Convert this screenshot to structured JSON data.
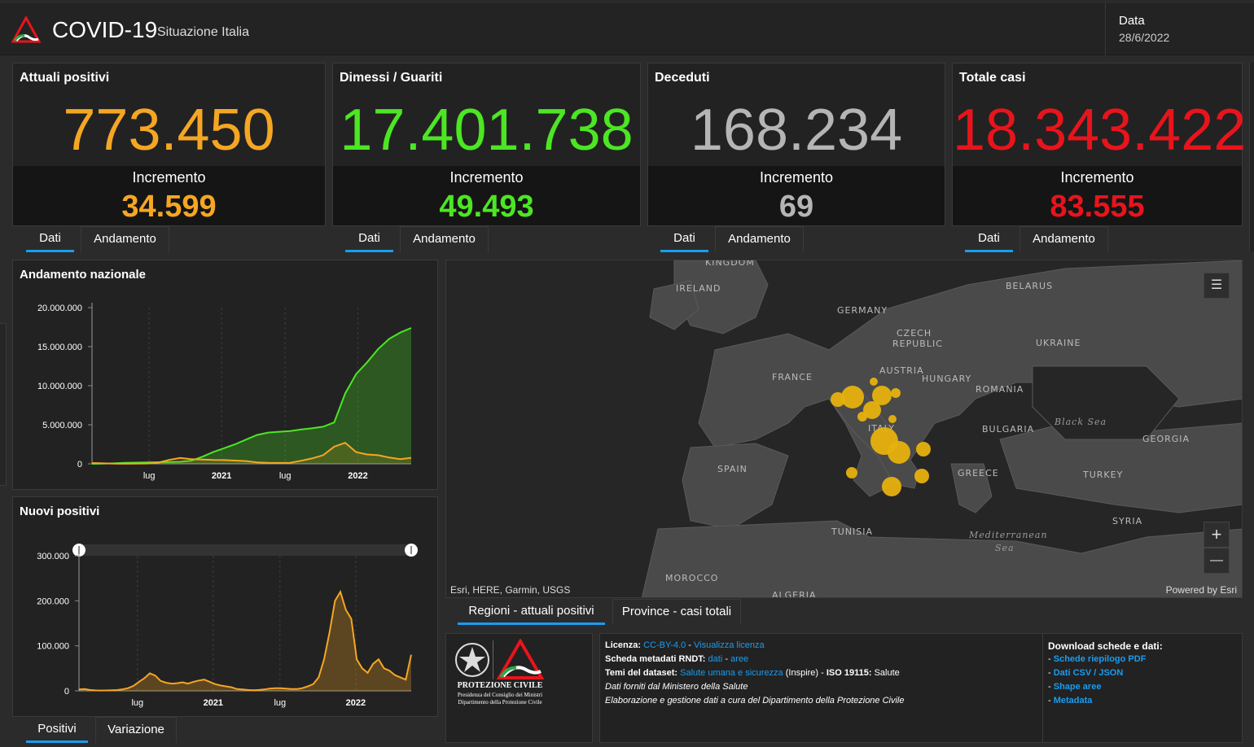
{
  "header": {
    "title": "COVID-19",
    "subtitle": "Situazione Italia",
    "date_label": "Data",
    "date_value": "28/6/2022"
  },
  "colors": {
    "orange": "#f5a623",
    "green": "#4ce623",
    "gray": "#b5b5b5",
    "red": "#e8141c",
    "accent": "#1a9cf0",
    "bubble": "#e6b10e"
  },
  "stats": [
    {
      "title": "Attuali positivi",
      "value": "773.450",
      "incr_label": "Incremento",
      "incr_value": "34.599",
      "tab_dati": "Dati",
      "tab_andamento": "Andamento"
    },
    {
      "title": "Dimessi / Guariti",
      "value": "17.401.738",
      "incr_label": "Incremento",
      "incr_value": "49.493",
      "tab_dati": "Dati",
      "tab_andamento": "Andamento"
    },
    {
      "title": "Deceduti",
      "value": "168.234",
      "incr_label": "Incremento",
      "incr_value": "69",
      "tab_dati": "Dati",
      "tab_andamento": "Andamento"
    },
    {
      "title": "Totale casi",
      "value": "18.343.422",
      "incr_label": "Incremento",
      "incr_value": "83.555",
      "tab_dati": "Dati",
      "tab_andamento": "Andamento"
    }
  ],
  "chart_data": [
    {
      "type": "area",
      "title": "Andamento nazionale",
      "y_ticks": [
        "20.000.000",
        "15.000.000",
        "10.000.000",
        "5.000.000",
        "0"
      ],
      "x_ticks": [
        "lug",
        "2021",
        "lug",
        "2022"
      ],
      "ylim": [
        0,
        20000000
      ],
      "series": [
        {
          "color": "#4ce623",
          "values": [
            0,
            20000,
            60000,
            120000,
            160000,
            190000,
            210000,
            230000,
            260000,
            400000,
            900000,
            1500000,
            2000000,
            2500000,
            3100000,
            3700000,
            4000000,
            4100000,
            4200000,
            4400000,
            4550000,
            4750000,
            5300000,
            9000000,
            11500000,
            13000000,
            14700000,
            16000000,
            16800000,
            17400000
          ]
        },
        {
          "color": "#f5a623",
          "values": [
            100000,
            60000,
            20000,
            15000,
            20000,
            40000,
            150000,
            500000,
            750000,
            600000,
            550000,
            500000,
            480000,
            420000,
            350000,
            180000,
            120000,
            110000,
            140000,
            400000,
            700000,
            1100000,
            2200000,
            2700000,
            1500000,
            1200000,
            1100000,
            800000,
            600000,
            770000
          ]
        }
      ]
    },
    {
      "type": "area",
      "title": "Nuovi positivi",
      "y_ticks": [
        "300.000",
        "200.000",
        "100.000",
        "0"
      ],
      "x_ticks": [
        "lug",
        "2021",
        "lug",
        "2022"
      ],
      "ylim": [
        0,
        300000
      ],
      "series": [
        {
          "color": "#f5a623",
          "values": [
            3000,
            4000,
            2000,
            1000,
            800,
            900,
            1200,
            1800,
            3500,
            6000,
            11000,
            20000,
            28000,
            39000,
            34000,
            22000,
            18000,
            16000,
            17000,
            19000,
            16000,
            20000,
            23000,
            25000,
            20000,
            15000,
            12000,
            10000,
            8000,
            4000,
            3000,
            2000,
            1500,
            2000,
            3000,
            5000,
            6000,
            6000,
            5000,
            4000,
            4000,
            6000,
            10000,
            15000,
            30000,
            70000,
            130000,
            200000,
            220000,
            180000,
            160000,
            70000,
            50000,
            40000,
            60000,
            70000,
            50000,
            45000,
            35000,
            30000,
            25000,
            80000
          ]
        }
      ]
    }
  ],
  "tabs_bottom_left": {
    "positivi": "Positivi",
    "variazione": "Variazione"
  },
  "map": {
    "labels": [
      "KINGDOM",
      "IRELAND",
      "GERMANY",
      "BELARUS",
      "CZECH",
      "REPUBLIC",
      "UKRAINE",
      "AUSTRIA",
      "FRANCE",
      "HUNGARY",
      "ROMANIA",
      "BULGARIA",
      "SPAIN",
      "GEORGIA",
      "GREECE",
      "TURKEY",
      "SYRIA",
      "TUNISIA",
      "MOROCCO",
      "ALGERIA",
      "ITALY"
    ],
    "seas": [
      "Black Sea",
      "Mediterranean",
      "Sea"
    ],
    "attribution": "Esri, HERE, Garmin, USGS",
    "powered": "Powered by Esri",
    "zoom_in": "+",
    "zoom_out": "—",
    "tab_regioni": "Regioni - attuali positivi",
    "tab_province": "Province - casi totali"
  },
  "footer": {
    "pc_name": "PROTEZIONE CIVILE",
    "pc_line1": "Presidenza del Consiglio dei Ministri",
    "pc_line2": "Dipartimento della Protezione Civile",
    "licenza_label": "Licenza:",
    "licenza_link": "CC-BY-4.0",
    "licenza_sep": " - ",
    "licenza_link2": "Visualizza licenza",
    "scheda_label": "Scheda metadati RNDT:",
    "scheda_link1": "dati",
    "scheda_sep": " - ",
    "scheda_link2": "aree",
    "temi_label": "Temi del dataset:",
    "temi_link": "Salute umana e sicurezza",
    "temi_rest": "(Inspire) - ",
    "iso_label": "ISO 19115:",
    "iso_value": "Salute",
    "line4": "Dati forniti dal Ministero della Salute",
    "line5": "Elaborazione e gestione dati a cura del Dipartimento della Protezione Civile",
    "download_title": "Download schede e dati:",
    "downloads": [
      "Schede riepilogo PDF",
      "Dati CSV / JSON",
      "Shape aree",
      "Metadata"
    ],
    "dash": "- "
  }
}
